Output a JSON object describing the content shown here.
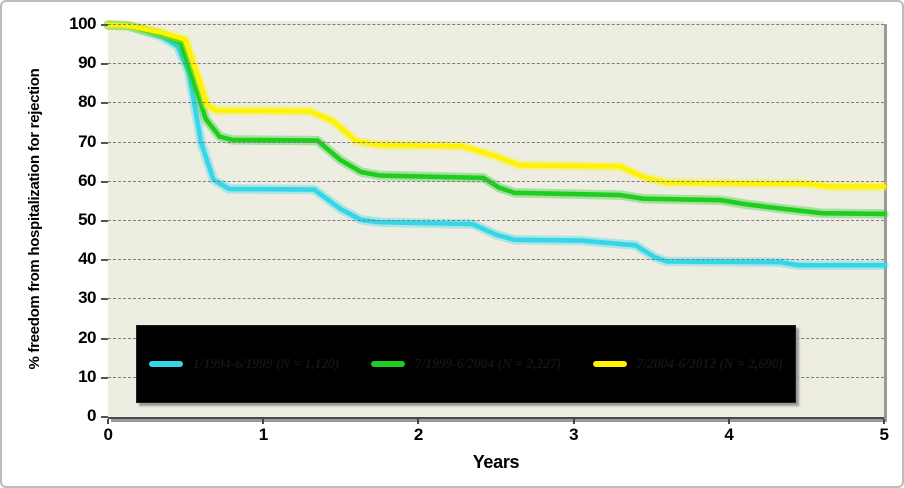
{
  "chart_data": {
    "type": "line",
    "title": "",
    "xlabel": "Years",
    "ylabel": "% freedom from hospitalization for rejection",
    "xlim": [
      0,
      5
    ],
    "ylim": [
      0,
      100
    ],
    "x_ticks": [
      "0",
      "1",
      "2",
      "3",
      "4",
      "5"
    ],
    "y_ticks": [
      "100",
      "90",
      "80",
      "70",
      "60",
      "50",
      "40",
      "30",
      "20",
      "10",
      "0"
    ],
    "grid": "horizontal dashed gridlines every 10 units",
    "legend_position": "black box inside plot, lower area",
    "series": [
      {
        "name": "1/1994-6/1999 (N = 1,120)",
        "color": "#35D6E8",
        "points": [
          [
            0,
            100
          ],
          [
            0.13,
            99.8
          ],
          [
            0.35,
            97
          ],
          [
            0.45,
            94.5
          ],
          [
            0.52,
            88
          ],
          [
            0.6,
            70
          ],
          [
            0.68,
            60.5
          ],
          [
            0.78,
            58.2
          ],
          [
            1.33,
            58
          ],
          [
            1.5,
            53
          ],
          [
            1.63,
            50.3
          ],
          [
            1.75,
            49.7
          ],
          [
            2.35,
            49.2
          ],
          [
            2.5,
            46.5
          ],
          [
            2.62,
            45.2
          ],
          [
            3.05,
            45
          ],
          [
            3.25,
            44.3
          ],
          [
            3.4,
            43.8
          ],
          [
            3.52,
            40.8
          ],
          [
            3.6,
            39.7
          ],
          [
            4.33,
            39.5
          ],
          [
            4.45,
            38.7
          ],
          [
            5,
            38.7
          ]
        ]
      },
      {
        "name": "7/1999-6/2004 (N = 2,227)",
        "color": "#21CC21",
        "points": [
          [
            0,
            100
          ],
          [
            0.13,
            99.8
          ],
          [
            0.35,
            97.5
          ],
          [
            0.47,
            95.5
          ],
          [
            0.55,
            86
          ],
          [
            0.63,
            76
          ],
          [
            0.72,
            71.5
          ],
          [
            0.8,
            70.7
          ],
          [
            1.35,
            70.5
          ],
          [
            1.5,
            65.5
          ],
          [
            1.63,
            62.5
          ],
          [
            1.75,
            61.6
          ],
          [
            2.42,
            61
          ],
          [
            2.52,
            58.5
          ],
          [
            2.62,
            57.2
          ],
          [
            3.3,
            56.6
          ],
          [
            3.45,
            55.7
          ],
          [
            3.95,
            55.3
          ],
          [
            4.12,
            54.2
          ],
          [
            4.35,
            53.1
          ],
          [
            4.6,
            52
          ],
          [
            5,
            51.8
          ]
        ]
      },
      {
        "name": "7/2004-6/2012 (N = 2,690)",
        "color": "#FDF300",
        "points": [
          [
            0,
            100
          ],
          [
            0.13,
            99.8
          ],
          [
            0.35,
            98
          ],
          [
            0.5,
            96.3
          ],
          [
            0.57,
            88
          ],
          [
            0.64,
            79.5
          ],
          [
            0.7,
            78.2
          ],
          [
            1.3,
            78
          ],
          [
            1.45,
            75.5
          ],
          [
            1.6,
            70.3
          ],
          [
            1.75,
            69.4
          ],
          [
            2.28,
            69.1
          ],
          [
            2.5,
            66.5
          ],
          [
            2.65,
            64.2
          ],
          [
            3.3,
            63.9
          ],
          [
            3.45,
            61.2
          ],
          [
            3.6,
            59.8
          ],
          [
            4.5,
            59.5
          ],
          [
            4.65,
            58.8
          ],
          [
            5,
            58.8
          ]
        ]
      }
    ]
  },
  "colors": {
    "plot_background": "#EEEDE2",
    "page_background": "#FFFFFF",
    "gridline": "#7D7D7D",
    "axis_text": "#000000",
    "legend_background": "#000000",
    "legend_text": "#141414",
    "series_cyan": "#35D6E8",
    "series_green": "#21CC21",
    "series_yellow": "#FDF300"
  }
}
